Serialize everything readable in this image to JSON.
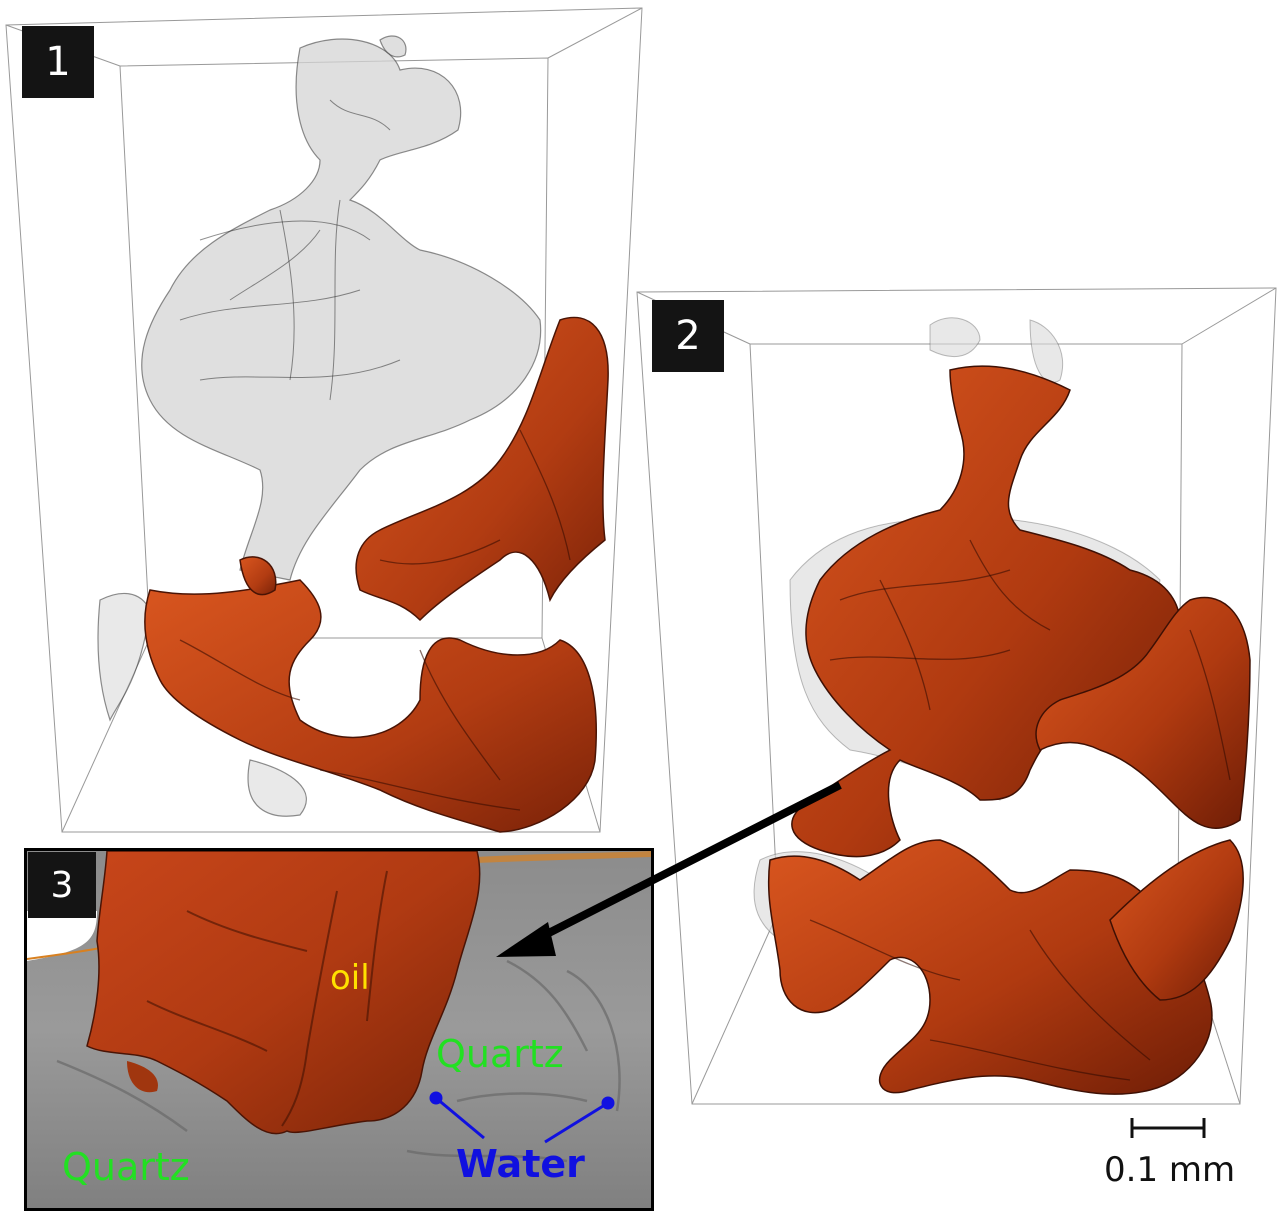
{
  "panels": {
    "panel_1": {
      "number": "1"
    },
    "panel_2": {
      "number": "2"
    },
    "panel_3": {
      "number": "3"
    }
  },
  "labels": {
    "oil": "oil",
    "quartz_right": "Quartz",
    "quartz_left": "Quartz",
    "water": "Water"
  },
  "scale_bar": {
    "label": "0.1 mm"
  },
  "colors": {
    "oil": "#c8461a",
    "pore_transparent": "#cfcfcf",
    "quartz_label": "#22e022",
    "water_label": "#1010e0",
    "oil_label": "#ffe000"
  }
}
